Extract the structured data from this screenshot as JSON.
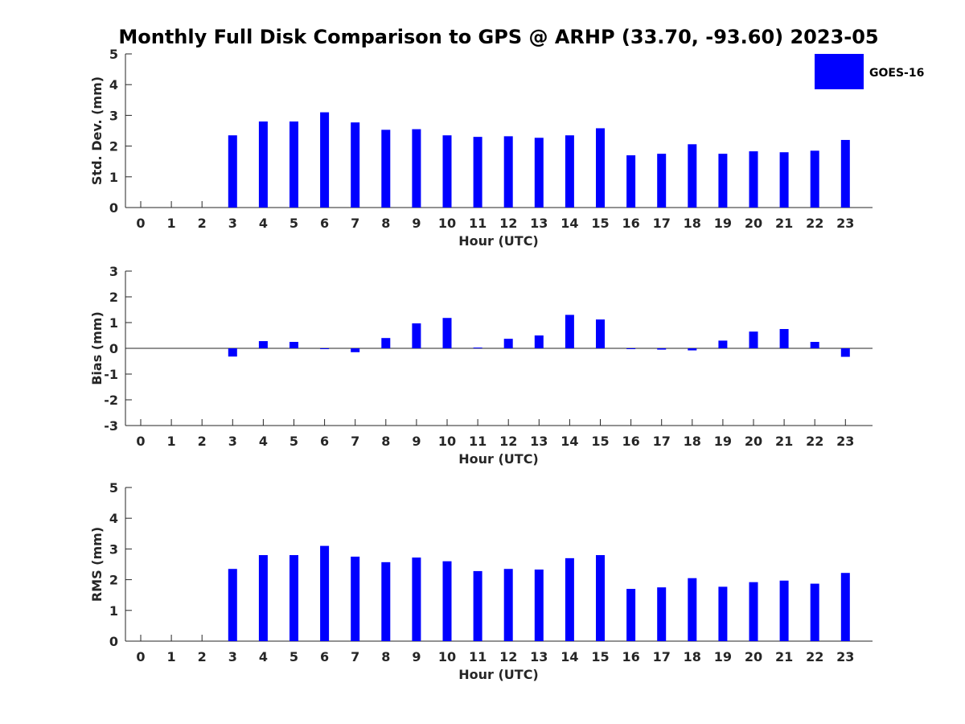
{
  "title": "Monthly Full Disk Comparison to GPS @ ARHP (33.70, -93.60) 2023-05",
  "legend": {
    "label": "GOES-16",
    "color": "#0000ff"
  },
  "chart_data": [
    {
      "type": "bar",
      "name": "std-dev",
      "xlabel": "Hour (UTC)",
      "ylabel": "Std. Dev. (mm)",
      "ylim": [
        0,
        5
      ],
      "yticks": [
        "0",
        "1",
        "2",
        "3",
        "4",
        "5"
      ],
      "categories": [
        "0",
        "1",
        "2",
        "3",
        "4",
        "5",
        "6",
        "7",
        "8",
        "9",
        "10",
        "11",
        "12",
        "13",
        "14",
        "15",
        "16",
        "17",
        "18",
        "19",
        "20",
        "21",
        "22",
        "23"
      ],
      "values": [
        null,
        null,
        null,
        2.35,
        2.8,
        2.8,
        3.1,
        2.77,
        2.53,
        2.55,
        2.35,
        2.3,
        2.32,
        2.27,
        2.35,
        2.58,
        1.7,
        1.75,
        2.06,
        1.75,
        1.83,
        1.8,
        1.85,
        2.2
      ]
    },
    {
      "type": "bar",
      "name": "bias",
      "xlabel": "Hour (UTC)",
      "ylabel": "Bias (mm)",
      "ylim": [
        -3,
        3
      ],
      "yticks": [
        "-3",
        "-2",
        "-1",
        "0",
        "1",
        "2",
        "3"
      ],
      "categories": [
        "0",
        "1",
        "2",
        "3",
        "4",
        "5",
        "6",
        "7",
        "8",
        "9",
        "10",
        "11",
        "12",
        "13",
        "14",
        "15",
        "16",
        "17",
        "18",
        "19",
        "20",
        "21",
        "22",
        "23"
      ],
      "values": [
        null,
        null,
        null,
        -0.32,
        0.28,
        0.25,
        0.0,
        -0.15,
        0.4,
        0.97,
        1.18,
        0.03,
        0.37,
        0.5,
        1.3,
        1.12,
        0.0,
        -0.05,
        -0.08,
        0.3,
        0.65,
        0.75,
        0.25,
        -0.33
      ]
    },
    {
      "type": "bar",
      "name": "rms",
      "xlabel": "Hour (UTC)",
      "ylabel": "RMS (mm)",
      "ylim": [
        0,
        5
      ],
      "yticks": [
        "0",
        "1",
        "2",
        "3",
        "4",
        "5"
      ],
      "categories": [
        "0",
        "1",
        "2",
        "3",
        "4",
        "5",
        "6",
        "7",
        "8",
        "9",
        "10",
        "11",
        "12",
        "13",
        "14",
        "15",
        "16",
        "17",
        "18",
        "19",
        "20",
        "21",
        "22",
        "23"
      ],
      "values": [
        null,
        null,
        null,
        2.35,
        2.8,
        2.8,
        3.1,
        2.75,
        2.57,
        2.72,
        2.6,
        2.28,
        2.35,
        2.33,
        2.7,
        2.8,
        1.7,
        1.75,
        2.05,
        1.77,
        1.92,
        1.97,
        1.87,
        2.22
      ]
    }
  ]
}
